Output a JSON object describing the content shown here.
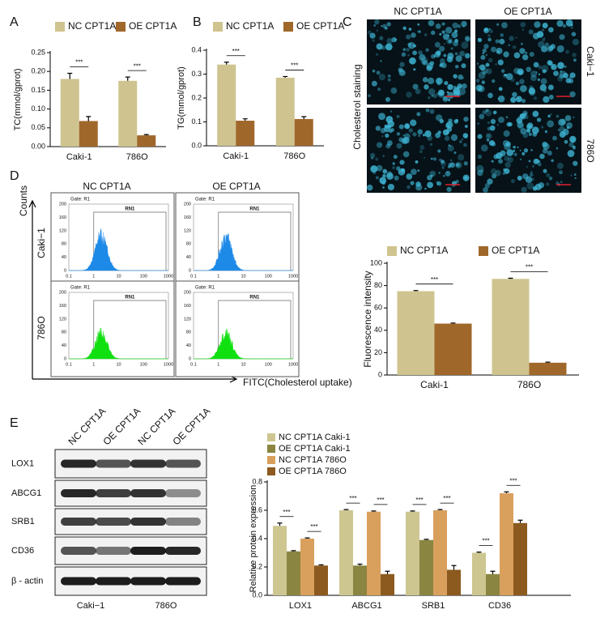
{
  "panel_labels": [
    "A",
    "B",
    "C",
    "D",
    "E"
  ],
  "chart_data": [
    {
      "type": "bar",
      "ylabel": "TC(mmol/gprot)",
      "legend": "top",
      "significance": "***",
      "categories": [
        "Caki-1",
        "786O"
      ],
      "series": [
        {
          "name": "NC CPT1A",
          "color": "#cfc48f",
          "values": [
            0.18,
            0.175
          ],
          "errors": [
            0.015,
            0.01
          ]
        },
        {
          "name": "OE CPT1A",
          "color": "#a0672b",
          "values": [
            0.068,
            0.03
          ],
          "errors": [
            0.012,
            0.002
          ]
        }
      ],
      "ylim": [
        0,
        0.25
      ],
      "yticks": [
        {
          "value": 0,
          "label": "0.00"
        },
        {
          "value": 0.05,
          "label": "0.05"
        },
        {
          "value": 0.1,
          "label": "0.10"
        },
        {
          "value": 0.15,
          "label": "0.15"
        },
        {
          "value": 0.2,
          "label": "0.20"
        },
        {
          "value": 0.25,
          "label": "0.25"
        }
      ]
    },
    {
      "type": "bar",
      "ylabel": "TG(mmol/gprot)",
      "legend": "top",
      "significance": "***",
      "categories": [
        "Caki-1",
        "786O"
      ],
      "series": [
        {
          "name": "NC CPT1A",
          "color": "#cfc48f",
          "values": [
            0.34,
            0.285
          ],
          "errors": [
            0.01,
            0.005
          ]
        },
        {
          "name": "OE CPT1A",
          "color": "#a0672b",
          "values": [
            0.105,
            0.112
          ],
          "errors": [
            0.008,
            0.01
          ]
        }
      ],
      "ylim": [
        0,
        0.4
      ],
      "yticks": [
        {
          "value": 0,
          "label": "0.0"
        },
        {
          "value": 0.1,
          "label": "0.1"
        },
        {
          "value": 0.2,
          "label": "0.2"
        },
        {
          "value": 0.3,
          "label": "0.3"
        },
        {
          "value": 0.4,
          "label": "0.4"
        }
      ]
    },
    {
      "type": "bar",
      "ylabel": "Fluorescence intensity",
      "legend": "top",
      "significance": "***",
      "categories": [
        "Caki-1",
        "786O"
      ],
      "series": [
        {
          "name": "NC CPT1A",
          "color": "#cfc48f",
          "values": [
            75,
            86
          ],
          "errors": [
            0.6,
            0.6
          ]
        },
        {
          "name": "OE CPT1A",
          "color": "#a0672b",
          "values": [
            46,
            11
          ],
          "errors": [
            0.5,
            0.5
          ]
        }
      ],
      "ylim": [
        0,
        100
      ],
      "yticks": [
        0,
        20,
        40,
        60,
        80,
        100
      ]
    },
    {
      "type": "bar",
      "ylabel": "Relative protein expression",
      "legend": "top-left",
      "significance": "***",
      "categories": [
        "LOX1",
        "ABCG1",
        "SRB1",
        "CD36"
      ],
      "series": [
        {
          "name": "NC CPT1A Caki-1",
          "color": "#cdc690",
          "values": [
            0.49,
            0.6,
            0.59,
            0.3
          ],
          "errors": [
            0.02,
            0.005,
            0.005,
            0.005
          ]
        },
        {
          "name": "OE CPT1A Caki-1",
          "color": "#8a8541",
          "values": [
            0.31,
            0.21,
            0.39,
            0.15
          ],
          "errors": [
            0.005,
            0.01,
            0.005,
            0.02
          ]
        },
        {
          "name": "NC CPT1A 786O",
          "color": "#d9a05d",
          "values": [
            0.4,
            0.59,
            0.6,
            0.72
          ],
          "errors": [
            0.005,
            0.005,
            0.005,
            0.01
          ]
        },
        {
          "name": "OE CPT1A 786O",
          "color": "#8c5a1e",
          "values": [
            0.21,
            0.15,
            0.18,
            0.51
          ],
          "errors": [
            0.005,
            0.02,
            0.03,
            0.02
          ]
        }
      ],
      "ylim": [
        0,
        0.8
      ],
      "yticks": [
        {
          "value": 0,
          "label": "0.0"
        },
        {
          "value": 0.2,
          "label": "0.2"
        },
        {
          "value": 0.4,
          "label": "0.4"
        },
        {
          "value": 0.6,
          "label": "0.6"
        },
        {
          "value": 0.8,
          "label": "0.8"
        }
      ]
    }
  ],
  "staining": {
    "columns": [
      "NC CPT1A",
      "OE CPT1A"
    ],
    "rows": [
      "Caki−1",
      "786O"
    ],
    "label": "Cholesterol staining"
  },
  "flow": {
    "columns": [
      "NC CPT1A",
      "OE CPT1A"
    ],
    "rows": [
      "Caki−1",
      "786O"
    ],
    "y_label": "Counts",
    "x_label": "FITC(Cholesterol uptake)",
    "gate": "Gate: R1",
    "region": "RN1",
    "xticks": [
      "0.1",
      "1",
      "10",
      "100",
      "1000"
    ],
    "yticks": [
      "0",
      "40",
      "80",
      "120",
      "160",
      "200"
    ]
  },
  "blot": {
    "lanes": [
      "NC CPT1A",
      "OE CPT1A",
      "NC CPT1A",
      "OE CPT1A"
    ],
    "proteins": [
      "LOX1",
      "ABCG1",
      "SRB1",
      "CD36",
      "β - actin"
    ],
    "groups": [
      "Caki−1",
      "786O"
    ]
  }
}
